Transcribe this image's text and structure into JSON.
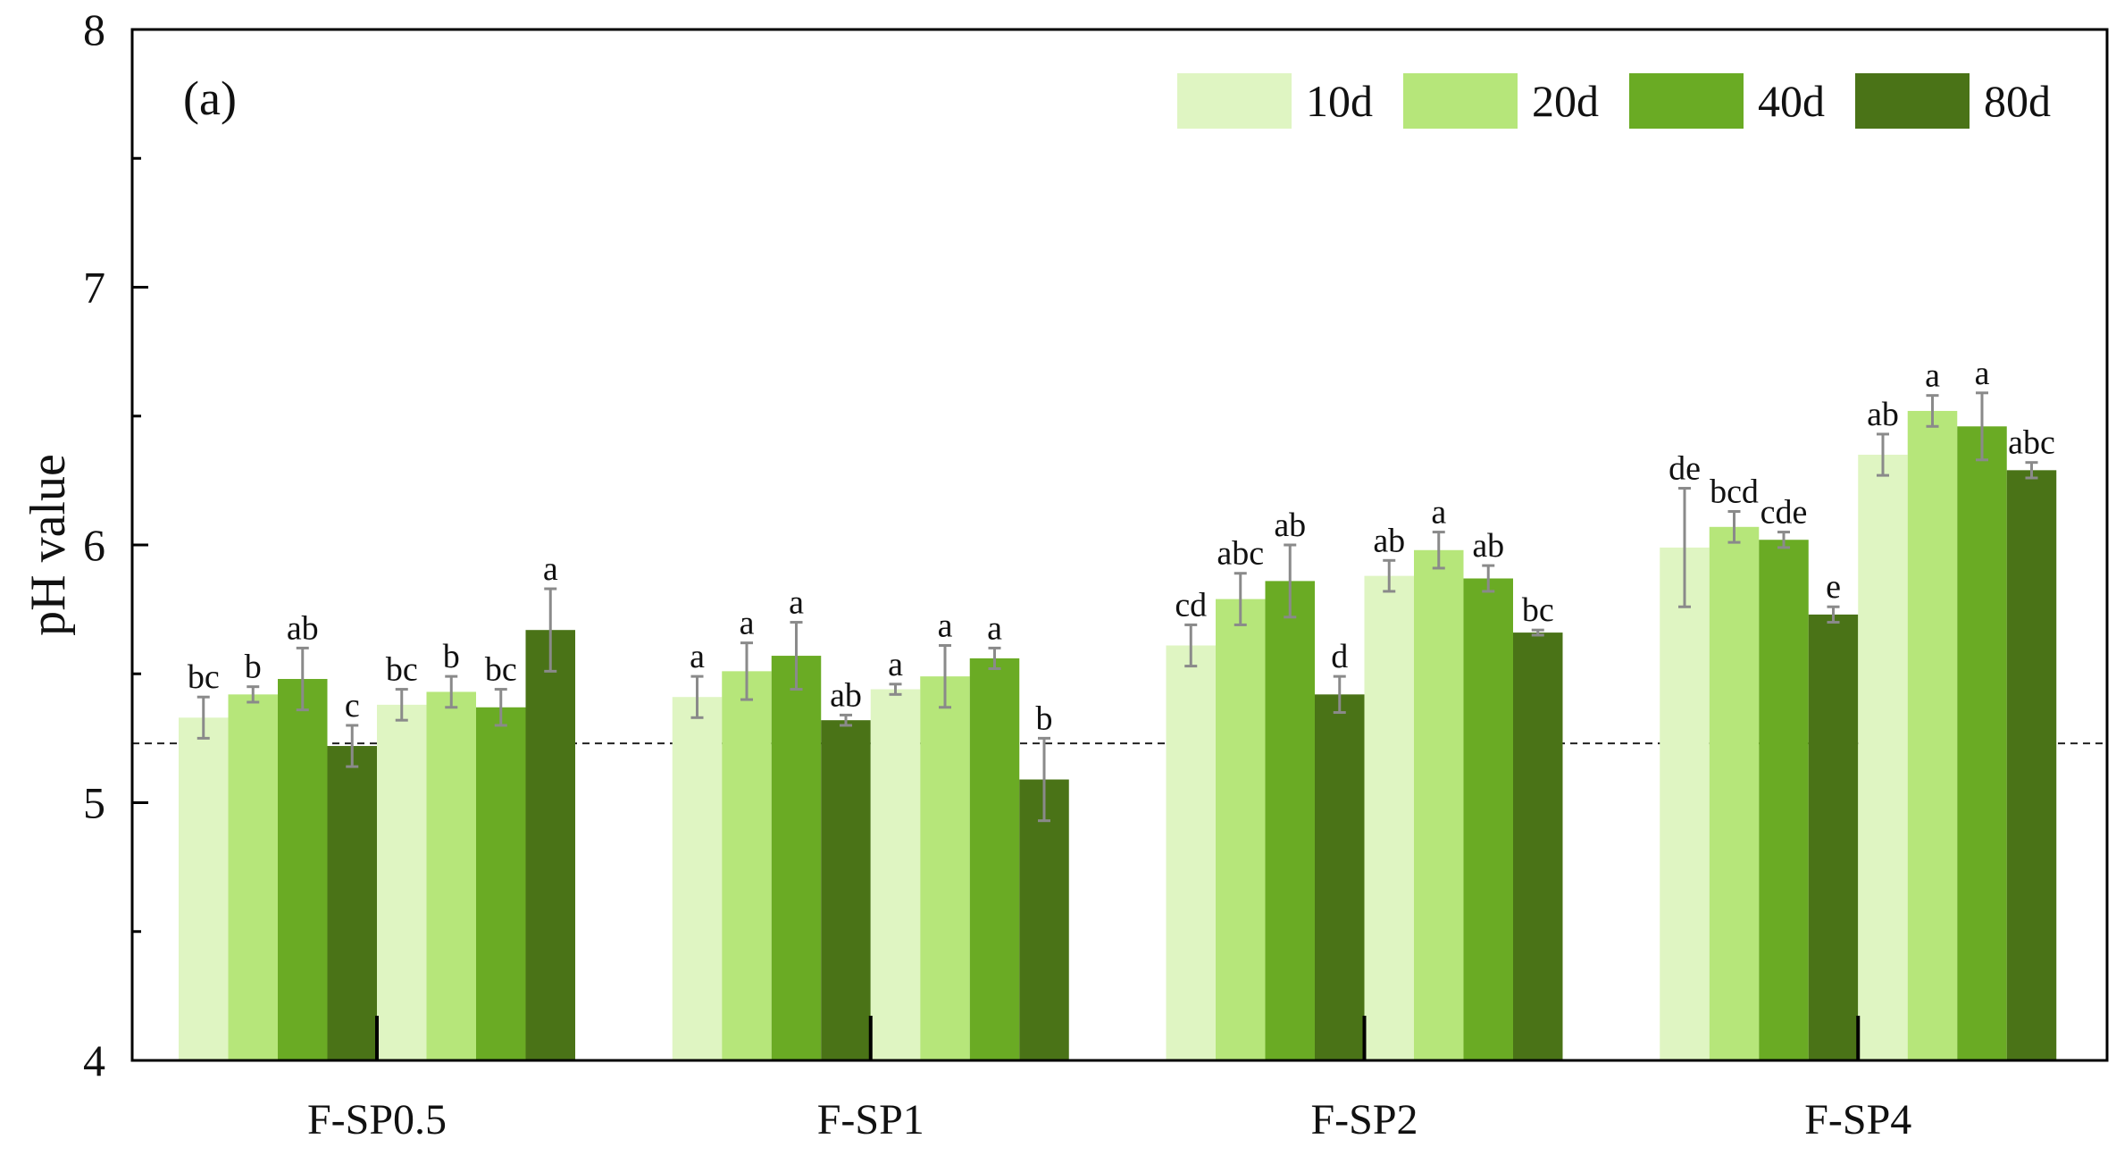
{
  "chart_data": {
    "type": "bar",
    "panel_label": "(a)",
    "ylabel": "pH value",
    "xlabel": "",
    "ylim": [
      4,
      8
    ],
    "yticks": [
      "4",
      "5",
      "6",
      "7",
      "8"
    ],
    "reference_line": 5.23,
    "categories": [
      "F-SP0.5",
      "F-SP1",
      "F-SP2",
      "F-SP4"
    ],
    "series": [
      {
        "name": "10d",
        "color": "#dff5c2"
      },
      {
        "name": "20d",
        "color": "#b6e67a"
      },
      {
        "name": "40d",
        "color": "#6aab24"
      },
      {
        "name": "80d",
        "color": "#4a7317"
      }
    ],
    "bars": [
      [
        [
          {
            "v": 5.33,
            "e": 0.08,
            "l": "bc"
          },
          {
            "v": 5.42,
            "e": 0.03,
            "l": "b"
          },
          {
            "v": 5.48,
            "e": 0.12,
            "l": "ab"
          },
          {
            "v": 5.22,
            "e": 0.08,
            "l": "c"
          }
        ],
        [
          {
            "v": 5.38,
            "e": 0.06,
            "l": "bc"
          },
          {
            "v": 5.43,
            "e": 0.06,
            "l": "b"
          },
          {
            "v": 5.37,
            "e": 0.07,
            "l": "bc"
          },
          {
            "v": 5.67,
            "e": 0.16,
            "l": "a"
          }
        ]
      ],
      [
        [
          {
            "v": 5.41,
            "e": 0.08,
            "l": "a"
          },
          {
            "v": 5.51,
            "e": 0.11,
            "l": "a"
          },
          {
            "v": 5.57,
            "e": 0.13,
            "l": "a"
          },
          {
            "v": 5.32,
            "e": 0.02,
            "l": "ab"
          }
        ],
        [
          {
            "v": 5.44,
            "e": 0.02,
            "l": "a"
          },
          {
            "v": 5.49,
            "e": 0.12,
            "l": "a"
          },
          {
            "v": 5.56,
            "e": 0.04,
            "l": "a"
          },
          {
            "v": 5.09,
            "e": 0.16,
            "l": "b"
          }
        ]
      ],
      [
        [
          {
            "v": 5.61,
            "e": 0.08,
            "l": "cd"
          },
          {
            "v": 5.79,
            "e": 0.1,
            "l": "abc"
          },
          {
            "v": 5.86,
            "e": 0.14,
            "l": "ab"
          },
          {
            "v": 5.42,
            "e": 0.07,
            "l": "d"
          }
        ],
        [
          {
            "v": 5.88,
            "e": 0.06,
            "l": "ab"
          },
          {
            "v": 5.98,
            "e": 0.07,
            "l": "a"
          },
          {
            "v": 5.87,
            "e": 0.05,
            "l": "ab"
          },
          {
            "v": 5.66,
            "e": 0.01,
            "l": "bc"
          }
        ]
      ],
      [
        [
          {
            "v": 5.99,
            "e": 0.23,
            "l": "de"
          },
          {
            "v": 6.07,
            "e": 0.06,
            "l": "bcd"
          },
          {
            "v": 6.02,
            "e": 0.03,
            "l": "cde"
          },
          {
            "v": 5.73,
            "e": 0.03,
            "l": "e"
          }
        ],
        [
          {
            "v": 6.35,
            "e": 0.08,
            "l": "ab"
          },
          {
            "v": 6.52,
            "e": 0.06,
            "l": "a"
          },
          {
            "v": 6.46,
            "e": 0.13,
            "l": "a"
          },
          {
            "v": 6.29,
            "e": 0.03,
            "l": "abc"
          }
        ]
      ]
    ]
  }
}
